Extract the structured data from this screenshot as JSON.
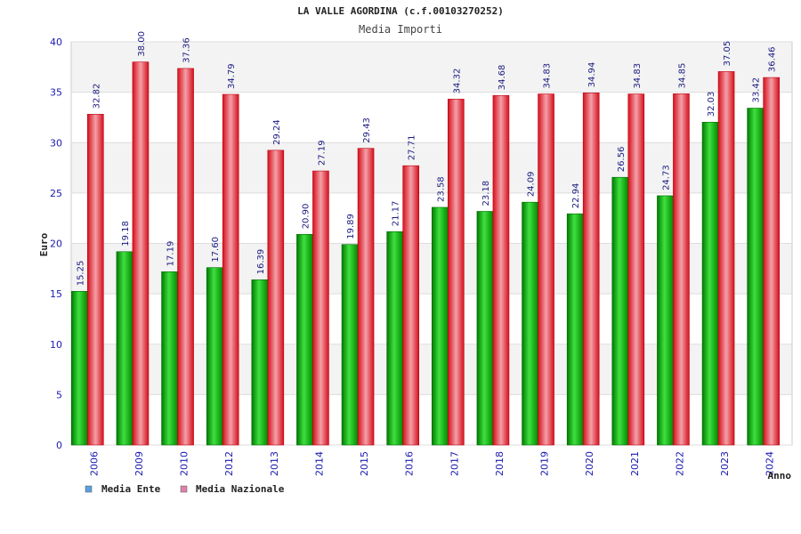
{
  "chart_data": {
    "type": "bar",
    "title": "LA VALLE AGORDINA (c.f.00103270252)",
    "subtitle": "Media Importi",
    "xlabel": "Anno",
    "ylabel": "Euro",
    "ylim": [
      0,
      40
    ],
    "yticks": [
      0,
      5,
      10,
      15,
      20,
      25,
      30,
      35,
      40
    ],
    "ytick_labels": [
      "0",
      "5",
      "10",
      "15",
      "20",
      "25",
      "30",
      "35",
      "40"
    ],
    "grid": true,
    "legend_position": "bottom-left",
    "categories": [
      "2006",
      "2009",
      "2010",
      "2012",
      "2013",
      "2014",
      "2015",
      "2016",
      "2017",
      "2018",
      "2019",
      "2020",
      "2021",
      "2022",
      "2023",
      "2024"
    ],
    "series": [
      {
        "name": "Media Ente",
        "color": "#00b000",
        "values": [
          15.25,
          19.18,
          17.19,
          17.6,
          16.39,
          20.9,
          19.89,
          21.17,
          23.58,
          23.18,
          24.09,
          22.94,
          26.56,
          24.73,
          32.03,
          33.42
        ],
        "labels": [
          "15.25",
          "19.18",
          "17.19",
          "17.60",
          "16.39",
          "20.90",
          "19.89",
          "21.17",
          "23.58",
          "23.18",
          "24.09",
          "22.94",
          "26.56",
          "24.73",
          "32.03",
          "33.42"
        ]
      },
      {
        "name": "Media Nazionale",
        "color": "#e8202a",
        "values": [
          32.82,
          38.0,
          37.36,
          34.79,
          29.24,
          27.19,
          29.43,
          27.71,
          34.32,
          34.68,
          34.83,
          34.94,
          34.83,
          34.85,
          37.05,
          36.46
        ],
        "labels": [
          "32.82",
          "38.00",
          "37.36",
          "34.79",
          "29.24",
          "27.19",
          "29.43",
          "27.71",
          "34.32",
          "34.68",
          "34.83",
          "34.94",
          "34.83",
          "34.85",
          "37.05",
          "36.46"
        ]
      }
    ],
    "legend": [
      {
        "label": "Media Ente",
        "swatch": "#5aa0e0"
      },
      {
        "label": "Media Nazionale",
        "swatch": "#e080a8"
      }
    ]
  }
}
